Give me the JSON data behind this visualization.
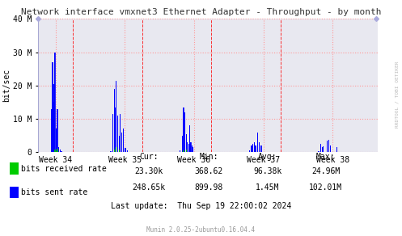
{
  "title": "Network interface vmxnet3 Ethernet Adapter - Throughput - by month",
  "ylabel": "bit/sec",
  "background_color": "#FFFFFF",
  "plot_bg_color": "#E8E8F0",
  "grid_color": "#FF9999",
  "week_labels": [
    "Week 34",
    "Week 35",
    "Week 36",
    "Week 37",
    "Week 38"
  ],
  "ylim": [
    0,
    40000000
  ],
  "yticks": [
    0,
    10000000,
    20000000,
    30000000,
    40000000
  ],
  "ytick_labels": [
    "0",
    "10 M",
    "20 M",
    "30 M",
    "40 M"
  ],
  "watermark": "RRDTOOL / TOBI OETIKER",
  "footer_left": "Munin 2.0.25-2ubuntu0.16.04.4",
  "legend": [
    {
      "label": "bits received rate",
      "color": "#00CC00"
    },
    {
      "label": "bits sent rate",
      "color": "#0000FF"
    }
  ],
  "stats": {
    "cur": [
      "23.30k",
      "248.65k"
    ],
    "min": [
      "368.62",
      "899.98"
    ],
    "avg": [
      "96.38k",
      "1.45M"
    ],
    "max": [
      "24.96M",
      "102.01M"
    ],
    "last_update": "Thu Sep 19 22:00:02 2024"
  },
  "blue_data": [
    [
      0.14,
      0
    ],
    [
      0.14,
      200000
    ],
    [
      0.17,
      200000
    ],
    [
      0.17,
      0
    ],
    [
      0.185,
      0
    ],
    [
      0.185,
      13000000
    ],
    [
      0.195,
      13000000
    ],
    [
      0.195,
      0
    ],
    [
      0.2,
      0
    ],
    [
      0.2,
      27000000
    ],
    [
      0.205,
      27000000
    ],
    [
      0.205,
      0
    ],
    [
      0.21,
      0
    ],
    [
      0.21,
      15000000
    ],
    [
      0.215,
      15000000
    ],
    [
      0.215,
      0
    ],
    [
      0.22,
      0
    ],
    [
      0.22,
      20500000
    ],
    [
      0.225,
      20500000
    ],
    [
      0.225,
      0
    ],
    [
      0.235,
      0
    ],
    [
      0.235,
      30000000
    ],
    [
      0.24,
      30000000
    ],
    [
      0.24,
      0
    ],
    [
      0.25,
      0
    ],
    [
      0.25,
      7000000
    ],
    [
      0.255,
      7000000
    ],
    [
      0.255,
      0
    ],
    [
      0.27,
      0
    ],
    [
      0.27,
      13000000
    ],
    [
      0.275,
      13000000
    ],
    [
      0.275,
      0
    ],
    [
      0.29,
      0
    ],
    [
      0.29,
      1500000
    ],
    [
      0.295,
      1500000
    ],
    [
      0.295,
      0
    ],
    [
      0.31,
      0
    ],
    [
      0.31,
      700000
    ],
    [
      0.315,
      700000
    ],
    [
      0.315,
      0
    ],
    [
      0.33,
      0
    ],
    [
      0.33,
      400000
    ],
    [
      0.335,
      400000
    ],
    [
      0.335,
      0
    ],
    [
      1.04,
      0
    ],
    [
      1.04,
      400000
    ],
    [
      1.045,
      400000
    ],
    [
      1.045,
      0
    ],
    [
      1.07,
      0
    ],
    [
      1.07,
      11500000
    ],
    [
      1.075,
      11500000
    ],
    [
      1.075,
      0
    ],
    [
      1.09,
      0
    ],
    [
      1.09,
      19000000
    ],
    [
      1.095,
      19000000
    ],
    [
      1.095,
      0
    ],
    [
      1.1,
      0
    ],
    [
      1.1,
      13500000
    ],
    [
      1.105,
      13500000
    ],
    [
      1.105,
      0
    ],
    [
      1.115,
      0
    ],
    [
      1.115,
      21500000
    ],
    [
      1.12,
      21500000
    ],
    [
      1.12,
      0
    ],
    [
      1.14,
      0
    ],
    [
      1.14,
      11000000
    ],
    [
      1.145,
      11000000
    ],
    [
      1.145,
      0
    ],
    [
      1.16,
      0
    ],
    [
      1.16,
      5000000
    ],
    [
      1.165,
      5000000
    ],
    [
      1.165,
      0
    ],
    [
      1.175,
      0
    ],
    [
      1.175,
      11500000
    ],
    [
      1.18,
      11500000
    ],
    [
      1.18,
      0
    ],
    [
      1.2,
      0
    ],
    [
      1.2,
      6000000
    ],
    [
      1.205,
      6000000
    ],
    [
      1.205,
      0
    ],
    [
      1.22,
      0
    ],
    [
      1.22,
      7000000
    ],
    [
      1.225,
      7000000
    ],
    [
      1.225,
      0
    ],
    [
      1.25,
      0
    ],
    [
      1.25,
      1200000
    ],
    [
      1.255,
      1200000
    ],
    [
      1.255,
      0
    ],
    [
      1.28,
      0
    ],
    [
      1.28,
      500000
    ],
    [
      1.285,
      500000
    ],
    [
      1.285,
      0
    ],
    [
      2.04,
      0
    ],
    [
      2.04,
      500000
    ],
    [
      2.045,
      500000
    ],
    [
      2.045,
      0
    ],
    [
      2.07,
      0
    ],
    [
      2.07,
      5000000
    ],
    [
      2.075,
      5000000
    ],
    [
      2.075,
      0
    ],
    [
      2.09,
      0
    ],
    [
      2.09,
      13500000
    ],
    [
      2.095,
      13500000
    ],
    [
      2.095,
      0
    ],
    [
      2.105,
      0
    ],
    [
      2.105,
      12000000
    ],
    [
      2.11,
      12000000
    ],
    [
      2.11,
      0
    ],
    [
      2.13,
      0
    ],
    [
      2.13,
      5500000
    ],
    [
      2.135,
      5500000
    ],
    [
      2.135,
      0
    ],
    [
      2.145,
      0
    ],
    [
      2.145,
      3000000
    ],
    [
      2.15,
      3000000
    ],
    [
      2.15,
      0
    ],
    [
      2.165,
      0
    ],
    [
      2.165,
      2500000
    ],
    [
      2.17,
      2500000
    ],
    [
      2.17,
      0
    ],
    [
      2.18,
      0
    ],
    [
      2.18,
      8000000
    ],
    [
      2.185,
      8000000
    ],
    [
      2.185,
      0
    ],
    [
      2.195,
      0
    ],
    [
      2.195,
      3000000
    ],
    [
      2.2,
      3000000
    ],
    [
      2.2,
      0
    ],
    [
      2.21,
      0
    ],
    [
      2.21,
      2000000
    ],
    [
      2.215,
      2000000
    ],
    [
      2.215,
      0
    ],
    [
      2.225,
      0
    ],
    [
      2.225,
      1500000
    ],
    [
      2.23,
      1500000
    ],
    [
      2.23,
      0
    ],
    [
      3.04,
      0
    ],
    [
      3.04,
      500000
    ],
    [
      3.045,
      500000
    ],
    [
      3.045,
      0
    ],
    [
      3.07,
      0
    ],
    [
      3.07,
      2000000
    ],
    [
      3.075,
      2000000
    ],
    [
      3.075,
      0
    ],
    [
      3.09,
      0
    ],
    [
      3.09,
      2500000
    ],
    [
      3.095,
      2500000
    ],
    [
      3.095,
      0
    ],
    [
      3.11,
      0
    ],
    [
      3.11,
      3000000
    ],
    [
      3.115,
      3000000
    ],
    [
      3.115,
      0
    ],
    [
      3.13,
      0
    ],
    [
      3.13,
      2000000
    ],
    [
      3.135,
      2000000
    ],
    [
      3.135,
      0
    ],
    [
      3.155,
      0
    ],
    [
      3.155,
      6000000
    ],
    [
      3.16,
      6000000
    ],
    [
      3.16,
      0
    ],
    [
      3.18,
      0
    ],
    [
      3.18,
      3000000
    ],
    [
      3.185,
      3000000
    ],
    [
      3.185,
      0
    ],
    [
      3.21,
      0
    ],
    [
      3.21,
      2000000
    ],
    [
      3.215,
      2000000
    ],
    [
      3.215,
      0
    ],
    [
      4.04,
      0
    ],
    [
      4.04,
      400000
    ],
    [
      4.045,
      400000
    ],
    [
      4.045,
      0
    ],
    [
      4.07,
      0
    ],
    [
      4.07,
      2500000
    ],
    [
      4.075,
      2500000
    ],
    [
      4.075,
      0
    ],
    [
      4.09,
      0
    ],
    [
      4.09,
      1500000
    ],
    [
      4.095,
      1500000
    ],
    [
      4.095,
      0
    ],
    [
      4.105,
      0
    ],
    [
      4.105,
      1800000
    ],
    [
      4.11,
      1800000
    ],
    [
      4.11,
      0
    ],
    [
      4.16,
      0
    ],
    [
      4.16,
      3500000
    ],
    [
      4.165,
      3500000
    ],
    [
      4.165,
      0
    ],
    [
      4.185,
      0
    ],
    [
      4.185,
      3800000
    ],
    [
      4.19,
      3800000
    ],
    [
      4.19,
      0
    ],
    [
      4.21,
      0
    ],
    [
      4.21,
      2000000
    ],
    [
      4.215,
      2000000
    ],
    [
      4.215,
      0
    ],
    [
      4.3,
      0
    ],
    [
      4.3,
      1500000
    ],
    [
      4.305,
      1500000
    ],
    [
      4.305,
      0
    ]
  ],
  "green_data": [
    [
      0.235,
      0
    ],
    [
      0.235,
      700000
    ],
    [
      0.24,
      700000
    ],
    [
      0.24,
      0
    ],
    [
      0.25,
      0
    ],
    [
      0.25,
      400000
    ],
    [
      0.255,
      400000
    ],
    [
      0.255,
      0
    ],
    [
      0.27,
      0
    ],
    [
      0.27,
      1000000
    ],
    [
      0.275,
      1000000
    ],
    [
      0.275,
      0
    ],
    [
      1.09,
      0
    ],
    [
      1.09,
      700000
    ],
    [
      1.095,
      700000
    ],
    [
      1.095,
      0
    ],
    [
      1.115,
      0
    ],
    [
      1.115,
      1500000
    ],
    [
      1.12,
      1500000
    ],
    [
      1.12,
      0
    ],
    [
      1.16,
      0
    ],
    [
      1.16,
      700000
    ],
    [
      1.165,
      700000
    ],
    [
      1.165,
      0
    ],
    [
      2.09,
      0
    ],
    [
      2.09,
      500000
    ],
    [
      2.095,
      500000
    ],
    [
      2.095,
      0
    ],
    [
      2.13,
      0
    ],
    [
      2.13,
      700000
    ],
    [
      2.135,
      700000
    ],
    [
      2.135,
      0
    ]
  ],
  "vlines": [
    0.5,
    1.5,
    2.5,
    3.5
  ],
  "week_positions": [
    0.25,
    1.25,
    2.25,
    3.25,
    4.25
  ],
  "xlim": [
    0.0,
    4.9
  ],
  "left_bar_x": 0.0
}
